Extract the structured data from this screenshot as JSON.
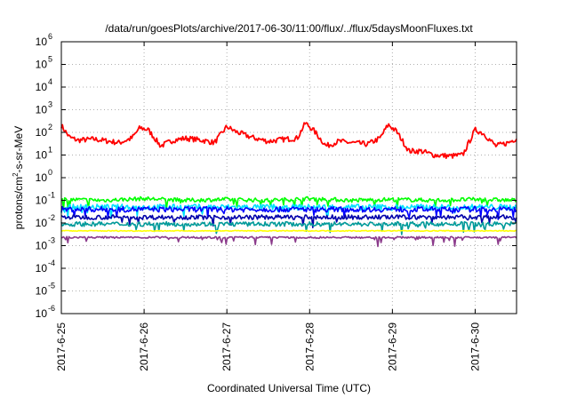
{
  "chart_data": {
    "type": "line",
    "title": "/data/run/goesPlots/archive/2017-06-30/11:00/flux/../flux/5daysMoonFluxes.txt",
    "xlabel": "Coordinated Universal Time (UTC)",
    "ylabel": {
      "base": "protons/cm",
      "sup": "2",
      "tail": "-s-sr-MeV"
    },
    "yscale": "log",
    "ylim": [
      1e-06,
      1000000.0
    ],
    "xlim": [
      "2017-06-25",
      "2017-06-30 12:00"
    ],
    "grid": true,
    "x_ticks": [
      "2017-6-25",
      "2017-6-26",
      "2017-6-27",
      "2017-6-28",
      "2017-6-29",
      "2017-6-30"
    ],
    "y_ticks": [
      {
        "value": -6,
        "label": "10",
        "exp": "-6"
      },
      {
        "value": -5,
        "label": "10",
        "exp": "-5"
      },
      {
        "value": -4,
        "label": "10",
        "exp": "-4"
      },
      {
        "value": -3,
        "label": "10",
        "exp": "-3"
      },
      {
        "value": -2,
        "label": "10",
        "exp": "-2"
      },
      {
        "value": -1,
        "label": "10",
        "exp": "-1"
      },
      {
        "value": 0,
        "label": "10",
        "exp": "0"
      },
      {
        "value": 1,
        "label": "10",
        "exp": "1"
      },
      {
        "value": 2,
        "label": "10",
        "exp": "2"
      },
      {
        "value": 3,
        "label": "10",
        "exp": "3"
      },
      {
        "value": 4,
        "label": "10",
        "exp": "4"
      },
      {
        "value": 5,
        "label": "10",
        "exp": "5"
      },
      {
        "value": 6,
        "label": "10",
        "exp": "6"
      }
    ],
    "series": [
      {
        "color": "#ff0000",
        "x_days": [
          0,
          0.1,
          0.2,
          0.4,
          0.7,
          0.85,
          0.95,
          1.05,
          1.2,
          1.35,
          1.5,
          1.7,
          1.85,
          2.0,
          2.1,
          2.3,
          2.5,
          2.7,
          2.85,
          2.95,
          3.05,
          3.2,
          3.35,
          3.5,
          3.7,
          3.85,
          3.95,
          4.05,
          4.2,
          4.35,
          4.5,
          4.7,
          4.85,
          5.0,
          5.1,
          5.25,
          5.4,
          5.5
        ],
        "y": [
          200,
          60,
          45,
          50,
          35,
          55,
          160,
          130,
          25,
          45,
          55,
          45,
          35,
          180,
          110,
          60,
          40,
          50,
          55,
          260,
          120,
          25,
          40,
          35,
          30,
          55,
          220,
          110,
          15,
          15,
          10,
          9,
          10,
          130,
          90,
          25,
          35,
          55
        ]
      },
      {
        "color": "#00ff00",
        "x_days": [
          0,
          0.5,
          1,
          1.5,
          2,
          2.5,
          3,
          3.5,
          4,
          4.5,
          5,
          5.5
        ],
        "y": [
          0.11,
          0.1,
          0.12,
          0.1,
          0.11,
          0.1,
          0.12,
          0.1,
          0.11,
          0.1,
          0.11,
          0.1
        ]
      },
      {
        "color": "#00e0ff",
        "x_days": [
          0,
          0.5,
          1,
          1.5,
          2,
          2.5,
          3,
          3.5,
          4,
          4.5,
          5,
          5.5
        ],
        "y": [
          0.05,
          0.05,
          0.05,
          0.05,
          0.05,
          0.05,
          0.05,
          0.05,
          0.05,
          0.05,
          0.05,
          0.05
        ]
      },
      {
        "color": "#0000ff",
        "x_days": [
          0,
          0.5,
          1,
          1.5,
          2,
          2.5,
          3,
          3.5,
          4,
          4.5,
          5,
          5.5
        ],
        "y": [
          0.04,
          0.04,
          0.04,
          0.04,
          0.04,
          0.04,
          0.04,
          0.04,
          0.04,
          0.04,
          0.04,
          0.04
        ]
      },
      {
        "color": "#0000aa",
        "x_days": [
          0,
          0.5,
          1,
          1.5,
          2,
          2.5,
          3,
          3.5,
          4,
          4.5,
          5,
          5.5
        ],
        "y": [
          0.018,
          0.018,
          0.018,
          0.018,
          0.018,
          0.018,
          0.018,
          0.018,
          0.018,
          0.018,
          0.018,
          0.018
        ]
      },
      {
        "color": "#009a9a",
        "x_days": [
          0,
          0.5,
          1,
          1.5,
          2,
          2.5,
          3,
          3.5,
          4,
          4.5,
          5,
          5.5
        ],
        "y": [
          0.009,
          0.009,
          0.009,
          0.009,
          0.009,
          0.009,
          0.009,
          0.009,
          0.009,
          0.009,
          0.009,
          0.009
        ]
      },
      {
        "color": "#ffff00",
        "x_days": [
          0,
          0.5,
          1,
          1.5,
          2,
          2.5,
          3,
          3.5,
          4,
          4.5,
          5,
          5.5
        ],
        "y": [
          0.0045,
          0.0045,
          0.0045,
          0.0045,
          0.0045,
          0.0045,
          0.0045,
          0.0045,
          0.0045,
          0.0045,
          0.0045,
          0.0045
        ]
      },
      {
        "color": "#8b3a8b",
        "x_days": [
          0,
          0.5,
          1,
          1.5,
          2,
          2.5,
          3,
          3.5,
          4,
          4.5,
          5,
          5.5
        ],
        "y": [
          0.0023,
          0.0023,
          0.0023,
          0.0023,
          0.0023,
          0.0023,
          0.0023,
          0.0023,
          0.0023,
          0.0023,
          0.0023,
          0.0023
        ]
      }
    ]
  }
}
